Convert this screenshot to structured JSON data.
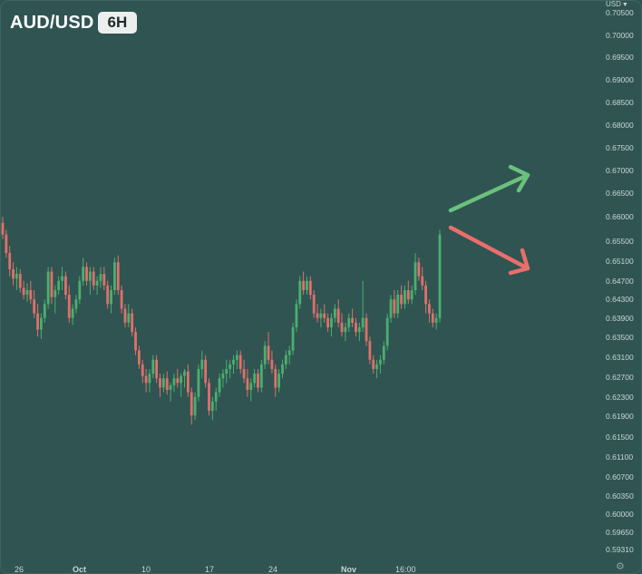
{
  "header": {
    "symbol": "AUD/USD",
    "timeframe": "6H"
  },
  "axis": {
    "currency_label": "USD",
    "currency_menu_icon": "chevron-down-icon",
    "settings_icon": "gear-icon"
  },
  "colors": {
    "background": "#2f5452",
    "up": "#4caf6e",
    "down": "#e0706a",
    "arrow_up": "#6bc17c",
    "arrow_down": "#e86f6a",
    "axis_text": "#c9d6d4"
  },
  "chart_data": {
    "type": "candlestick",
    "title": "AUD/USD",
    "interval": "6H",
    "ylim": [
      0.5911,
      0.7068
    ],
    "y_ticks": [
      "0.70500",
      "0.70000",
      "0.69500",
      "0.69000",
      "0.68500",
      "0.68000",
      "0.67500",
      "0.67000",
      "0.66500",
      "0.66000",
      "0.65500",
      "0.65100",
      "0.64700",
      "0.64300",
      "0.63900",
      "0.63500",
      "0.63100",
      "0.62700",
      "0.62300",
      "0.61900",
      "0.61500",
      "0.61100",
      "0.60700",
      "0.60350",
      "0.60000",
      "0.59650",
      "0.59310"
    ],
    "x_labels": [
      "26",
      "Oct",
      "10",
      "17",
      "24",
      "Nov",
      "16:00"
    ],
    "annotations": [
      {
        "type": "arrow",
        "direction": "up",
        "color": "#6bc17c"
      },
      {
        "type": "arrow",
        "direction": "down",
        "color": "#e86f6a"
      }
    ],
    "candles": [
      [
        0.6615,
        0.6628,
        0.658,
        0.659
      ],
      [
        0.659,
        0.66,
        0.654,
        0.655
      ],
      [
        0.655,
        0.6565,
        0.65,
        0.6515
      ],
      [
        0.6515,
        0.653,
        0.648,
        0.6495
      ],
      [
        0.6495,
        0.652,
        0.647,
        0.6505
      ],
      [
        0.6505,
        0.6515,
        0.6465,
        0.6475
      ],
      [
        0.6475,
        0.649,
        0.645,
        0.646
      ],
      [
        0.646,
        0.6485,
        0.6445,
        0.647
      ],
      [
        0.647,
        0.649,
        0.644,
        0.645
      ],
      [
        0.645,
        0.647,
        0.641,
        0.642
      ],
      [
        0.642,
        0.644,
        0.637,
        0.6385
      ],
      [
        0.6385,
        0.642,
        0.6365,
        0.641
      ],
      [
        0.641,
        0.645,
        0.64,
        0.644
      ],
      [
        0.644,
        0.652,
        0.643,
        0.651
      ],
      [
        0.651,
        0.652,
        0.644,
        0.6455
      ],
      [
        0.6455,
        0.648,
        0.642,
        0.647
      ],
      [
        0.647,
        0.65,
        0.646,
        0.649
      ],
      [
        0.649,
        0.652,
        0.647,
        0.65
      ],
      [
        0.65,
        0.651,
        0.645,
        0.646
      ],
      [
        0.646,
        0.648,
        0.64,
        0.641
      ],
      [
        0.641,
        0.644,
        0.6395,
        0.643
      ],
      [
        0.643,
        0.646,
        0.642,
        0.645
      ],
      [
        0.645,
        0.65,
        0.644,
        0.649
      ],
      [
        0.649,
        0.654,
        0.648,
        0.652
      ],
      [
        0.652,
        0.653,
        0.648,
        0.649
      ],
      [
        0.649,
        0.652,
        0.646,
        0.651
      ],
      [
        0.651,
        0.652,
        0.647,
        0.648
      ],
      [
        0.648,
        0.65,
        0.646,
        0.649
      ],
      [
        0.649,
        0.652,
        0.6475,
        0.6505
      ],
      [
        0.6505,
        0.652,
        0.647,
        0.648
      ],
      [
        0.648,
        0.649,
        0.643,
        0.644
      ],
      [
        0.644,
        0.648,
        0.642,
        0.647
      ],
      [
        0.647,
        0.654,
        0.646,
        0.653
      ],
      [
        0.653,
        0.6545,
        0.646,
        0.647
      ],
      [
        0.647,
        0.648,
        0.642,
        0.643
      ],
      [
        0.643,
        0.644,
        0.639,
        0.64
      ],
      [
        0.64,
        0.644,
        0.639,
        0.642
      ],
      [
        0.642,
        0.643,
        0.637,
        0.638
      ],
      [
        0.638,
        0.639,
        0.633,
        0.634
      ],
      [
        0.634,
        0.635,
        0.63,
        0.631
      ],
      [
        0.631,
        0.632,
        0.627,
        0.6285
      ],
      [
        0.6285,
        0.63,
        0.625,
        0.627
      ],
      [
        0.627,
        0.63,
        0.625,
        0.629
      ],
      [
        0.629,
        0.633,
        0.628,
        0.632
      ],
      [
        0.632,
        0.633,
        0.627,
        0.628
      ],
      [
        0.628,
        0.629,
        0.624,
        0.626
      ],
      [
        0.626,
        0.629,
        0.625,
        0.628
      ],
      [
        0.628,
        0.6295,
        0.6245,
        0.6255
      ],
      [
        0.6255,
        0.627,
        0.623,
        0.6265
      ],
      [
        0.6265,
        0.629,
        0.625,
        0.628
      ],
      [
        0.628,
        0.63,
        0.626,
        0.627
      ],
      [
        0.627,
        0.629,
        0.624,
        0.6285
      ],
      [
        0.6285,
        0.63,
        0.626,
        0.6295
      ],
      [
        0.6295,
        0.631,
        0.624,
        0.625
      ],
      [
        0.625,
        0.626,
        0.618,
        0.62
      ],
      [
        0.62,
        0.625,
        0.619,
        0.624
      ],
      [
        0.624,
        0.631,
        0.623,
        0.63
      ],
      [
        0.63,
        0.634,
        0.628,
        0.632
      ],
      [
        0.632,
        0.633,
        0.626,
        0.627
      ],
      [
        0.627,
        0.628,
        0.62,
        0.621
      ],
      [
        0.621,
        0.624,
        0.619,
        0.623
      ],
      [
        0.623,
        0.626,
        0.621,
        0.625
      ],
      [
        0.625,
        0.629,
        0.624,
        0.628
      ],
      [
        0.628,
        0.63,
        0.626,
        0.629
      ],
      [
        0.629,
        0.632,
        0.627,
        0.63
      ],
      [
        0.63,
        0.632,
        0.628,
        0.631
      ],
      [
        0.631,
        0.633,
        0.629,
        0.632
      ],
      [
        0.632,
        0.634,
        0.63,
        0.633
      ],
      [
        0.633,
        0.634,
        0.629,
        0.63
      ],
      [
        0.63,
        0.632,
        0.627,
        0.628
      ],
      [
        0.628,
        0.63,
        0.624,
        0.6255
      ],
      [
        0.6255,
        0.628,
        0.623,
        0.627
      ],
      [
        0.627,
        0.63,
        0.626,
        0.629
      ],
      [
        0.629,
        0.63,
        0.625,
        0.626
      ],
      [
        0.626,
        0.632,
        0.625,
        0.631
      ],
      [
        0.631,
        0.636,
        0.63,
        0.635
      ],
      [
        0.635,
        0.638,
        0.631,
        0.632
      ],
      [
        0.632,
        0.634,
        0.629,
        0.63
      ],
      [
        0.63,
        0.631,
        0.624,
        0.626
      ],
      [
        0.626,
        0.63,
        0.625,
        0.629
      ],
      [
        0.629,
        0.632,
        0.628,
        0.631
      ],
      [
        0.631,
        0.634,
        0.63,
        0.633
      ],
      [
        0.633,
        0.635,
        0.631,
        0.634
      ],
      [
        0.634,
        0.64,
        0.633,
        0.639
      ],
      [
        0.639,
        0.645,
        0.638,
        0.644
      ],
      [
        0.644,
        0.65,
        0.643,
        0.649
      ],
      [
        0.649,
        0.651,
        0.646,
        0.647
      ],
      [
        0.647,
        0.65,
        0.646,
        0.649
      ],
      [
        0.649,
        0.65,
        0.645,
        0.646
      ],
      [
        0.646,
        0.647,
        0.641,
        0.642
      ],
      [
        0.642,
        0.644,
        0.64,
        0.641
      ],
      [
        0.641,
        0.643,
        0.639,
        0.642
      ],
      [
        0.642,
        0.644,
        0.64,
        0.641
      ],
      [
        0.641,
        0.642,
        0.638,
        0.639
      ],
      [
        0.639,
        0.642,
        0.637,
        0.641
      ],
      [
        0.641,
        0.644,
        0.64,
        0.643
      ],
      [
        0.643,
        0.645,
        0.639,
        0.64
      ],
      [
        0.64,
        0.642,
        0.637,
        0.638
      ],
      [
        0.638,
        0.64,
        0.636,
        0.639
      ],
      [
        0.639,
        0.642,
        0.638,
        0.641
      ],
      [
        0.641,
        0.643,
        0.639,
        0.64
      ],
      [
        0.64,
        0.641,
        0.637,
        0.638
      ],
      [
        0.638,
        0.64,
        0.636,
        0.639
      ],
      [
        0.639,
        0.649,
        0.638,
        0.641
      ],
      [
        0.641,
        0.642,
        0.635,
        0.636
      ],
      [
        0.636,
        0.637,
        0.631,
        0.632
      ],
      [
        0.632,
        0.633,
        0.629,
        0.63
      ],
      [
        0.63,
        0.632,
        0.628,
        0.631
      ],
      [
        0.631,
        0.633,
        0.629,
        0.632
      ],
      [
        0.632,
        0.636,
        0.631,
        0.635
      ],
      [
        0.635,
        0.642,
        0.634,
        0.641
      ],
      [
        0.641,
        0.646,
        0.64,
        0.645
      ],
      [
        0.645,
        0.647,
        0.641,
        0.642
      ],
      [
        0.642,
        0.647,
        0.641,
        0.646
      ],
      [
        0.646,
        0.648,
        0.643,
        0.644
      ],
      [
        0.644,
        0.648,
        0.643,
        0.647
      ],
      [
        0.647,
        0.649,
        0.644,
        0.645
      ],
      [
        0.645,
        0.648,
        0.644,
        0.647
      ],
      [
        0.647,
        0.655,
        0.646,
        0.653
      ],
      [
        0.653,
        0.654,
        0.649,
        0.65
      ],
      [
        0.65,
        0.652,
        0.647,
        0.648
      ],
      [
        0.648,
        0.649,
        0.642,
        0.644
      ],
      [
        0.644,
        0.645,
        0.64,
        0.642
      ],
      [
        0.642,
        0.643,
        0.639,
        0.64
      ],
      [
        0.64,
        0.642,
        0.6385,
        0.641
      ],
      [
        0.641,
        0.66,
        0.64,
        0.659
      ]
    ]
  }
}
